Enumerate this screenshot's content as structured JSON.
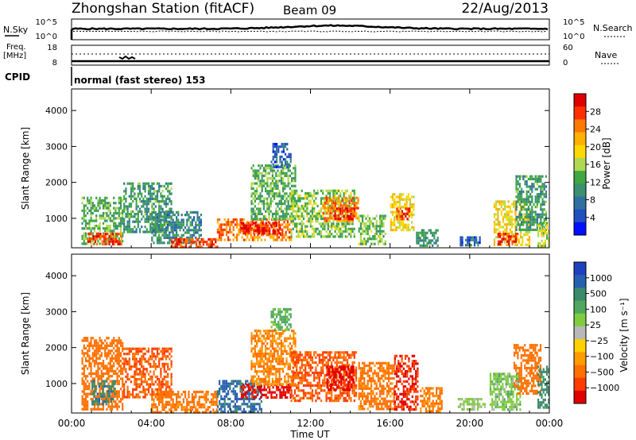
{
  "header": {
    "station_title": "Zhongshan Station (fitACF)",
    "beam": "Beam 09",
    "date": "22/Aug/2013"
  },
  "noise_panel": {
    "left_label": "N.Sky",
    "right_label": "N.Search",
    "left_ticks": [
      "10^5",
      "10^0"
    ],
    "right_ticks": [
      "10^5",
      "10^0"
    ]
  },
  "freq_panel": {
    "left_label_1": "Freq.",
    "left_label_2": "[MHz]",
    "left_ticks": [
      "18",
      "8"
    ],
    "right_label": "Nave",
    "right_ticks": [
      "60",
      "0"
    ]
  },
  "cpid": {
    "label": "CPID",
    "text": "normal (fast stereo) 153"
  },
  "power_colorbar": {
    "title": "Power [dB]",
    "ticks": [
      "28",
      "24",
      "20",
      "16",
      "12",
      "8",
      "4"
    ],
    "colors": [
      "#e00000",
      "#ff3000",
      "#ff7800",
      "#ffb000",
      "#ffd800",
      "#b0d850",
      "#40a840",
      "#3a9070",
      "#3070a0",
      "#2050c0",
      "#0010ff"
    ]
  },
  "velocity_colorbar": {
    "title": "Velocity [m s⁻¹]",
    "ticks": [
      "1000",
      "500",
      "100",
      "25",
      "−25",
      "−100",
      "−500",
      "−1000"
    ],
    "colors": [
      "#2040c0",
      "#2860b0",
      "#3c8a6a",
      "#50a860",
      "#80cc40",
      "#b8b8b8",
      "#ffd000",
      "#ff9c00",
      "#ff7000",
      "#ff3c00",
      "#e00000"
    ]
  },
  "chart_data": [
    {
      "type": "heatmap",
      "variable": "Power",
      "ylabel": "Slant Range [km]",
      "xlabel": "Time UT",
      "x_ticks": [
        "00:00",
        "04:00",
        "08:00",
        "12:00",
        "16:00",
        "20:00",
        "00:00"
      ],
      "y_ticks": [
        1000,
        2000,
        3000,
        4000
      ],
      "ylim": [
        180,
        4600
      ],
      "xlim_hours": [
        0,
        24
      ],
      "colorbar_label": "Power [dB]",
      "colorbar_ticks": [
        4,
        8,
        12,
        16,
        20,
        24,
        28
      ],
      "regions": [
        {
          "t0": 0.5,
          "t1": 2.6,
          "r0": 300,
          "r1": 1600,
          "v": 12
        },
        {
          "t0": 0.8,
          "t1": 2.5,
          "r0": 250,
          "r1": 600,
          "v": 26
        },
        {
          "t0": 2.6,
          "t1": 5.0,
          "r0": 600,
          "r1": 2000,
          "v": 10
        },
        {
          "t0": 4.0,
          "t1": 6.5,
          "r0": 300,
          "r1": 1200,
          "v": 8
        },
        {
          "t0": 5.0,
          "t1": 7.3,
          "r0": 230,
          "r1": 450,
          "v": 27
        },
        {
          "t0": 7.3,
          "t1": 11.0,
          "r0": 400,
          "r1": 1000,
          "v": 24
        },
        {
          "t0": 8.5,
          "t1": 10.5,
          "r0": 600,
          "r1": 900,
          "v": 29
        },
        {
          "t0": 9.0,
          "t1": 11.2,
          "r0": 1000,
          "r1": 2500,
          "v": 12
        },
        {
          "t0": 10.0,
          "t1": 11.0,
          "r0": 2400,
          "r1": 3100,
          "v": 5
        },
        {
          "t0": 11.0,
          "t1": 14.2,
          "r0": 500,
          "r1": 1800,
          "v": 14
        },
        {
          "t0": 12.6,
          "t1": 14.4,
          "r0": 900,
          "r1": 1600,
          "v": 24
        },
        {
          "t0": 13.2,
          "t1": 14.2,
          "r0": 1000,
          "r1": 1300,
          "v": 29
        },
        {
          "t0": 14.4,
          "t1": 15.8,
          "r0": 300,
          "r1": 1100,
          "v": 13
        },
        {
          "t0": 16.0,
          "t1": 17.2,
          "r0": 700,
          "r1": 1700,
          "v": 18
        },
        {
          "t0": 16.3,
          "t1": 17.0,
          "r0": 1000,
          "r1": 1300,
          "v": 27
        },
        {
          "t0": 17.3,
          "t1": 18.4,
          "r0": 250,
          "r1": 700,
          "v": 10
        },
        {
          "t0": 19.5,
          "t1": 20.5,
          "r0": 250,
          "r1": 500,
          "v": 5
        },
        {
          "t0": 21.2,
          "t1": 23.0,
          "r0": 250,
          "r1": 1500,
          "v": 18
        },
        {
          "t0": 21.4,
          "t1": 22.4,
          "r0": 300,
          "r1": 600,
          "v": 27
        },
        {
          "t0": 22.3,
          "t1": 23.8,
          "r0": 700,
          "r1": 2200,
          "v": 10
        },
        {
          "t0": 23.4,
          "t1": 24.0,
          "r0": 250,
          "r1": 900,
          "v": 16
        }
      ]
    },
    {
      "type": "heatmap",
      "variable": "Velocity",
      "ylabel": "Slant Range [km]",
      "xlabel": "Time UT",
      "x_ticks": [
        "00:00",
        "04:00",
        "08:00",
        "12:00",
        "16:00",
        "20:00",
        "00:00"
      ],
      "y_ticks": [
        1000,
        2000,
        3000,
        4000
      ],
      "ylim": [
        180,
        4600
      ],
      "xlim_hours": [
        0,
        24
      ],
      "colorbar_label": "Velocity [m s⁻¹]",
      "colorbar_ticks": [
        1000,
        500,
        100,
        25,
        -25,
        -100,
        -500,
        -1000
      ],
      "regions": [
        {
          "t0": 0.5,
          "t1": 2.6,
          "r0": 300,
          "r1": 2300,
          "v": -200
        },
        {
          "t0": 1.0,
          "t1": 2.2,
          "r0": 400,
          "r1": 1100,
          "v": 400
        },
        {
          "t0": 2.6,
          "t1": 5.0,
          "r0": 600,
          "r1": 2000,
          "v": -300
        },
        {
          "t0": 4.0,
          "t1": 7.3,
          "r0": 230,
          "r1": 800,
          "v": -150
        },
        {
          "t0": 7.3,
          "t1": 9.5,
          "r0": 250,
          "r1": 1100,
          "v": 600
        },
        {
          "t0": 8.5,
          "t1": 11.0,
          "r0": 600,
          "r1": 1000,
          "v": -700
        },
        {
          "t0": 9.0,
          "t1": 11.2,
          "r0": 1000,
          "r1": 2500,
          "v": -100
        },
        {
          "t0": 10.0,
          "t1": 11.0,
          "r0": 2500,
          "r1": 3100,
          "v": 120
        },
        {
          "t0": 11.0,
          "t1": 14.3,
          "r0": 500,
          "r1": 1900,
          "v": -300
        },
        {
          "t0": 12.8,
          "t1": 14.2,
          "r0": 800,
          "r1": 1500,
          "v": -700
        },
        {
          "t0": 14.4,
          "t1": 16.2,
          "r0": 300,
          "r1": 1600,
          "v": -150
        },
        {
          "t0": 16.2,
          "t1": 17.4,
          "r0": 300,
          "r1": 1800,
          "v": -500
        },
        {
          "t0": 17.5,
          "t1": 18.6,
          "r0": 250,
          "r1": 900,
          "v": -120
        },
        {
          "t0": 19.4,
          "t1": 20.8,
          "r0": 250,
          "r1": 600,
          "v": 60
        },
        {
          "t0": 21.0,
          "t1": 22.5,
          "r0": 250,
          "r1": 1300,
          "v": 80
        },
        {
          "t0": 22.2,
          "t1": 23.6,
          "r0": 700,
          "r1": 2100,
          "v": -200
        },
        {
          "t0": 23.4,
          "t1": 24.0,
          "r0": 300,
          "r1": 1500,
          "v": 300
        }
      ]
    }
  ]
}
